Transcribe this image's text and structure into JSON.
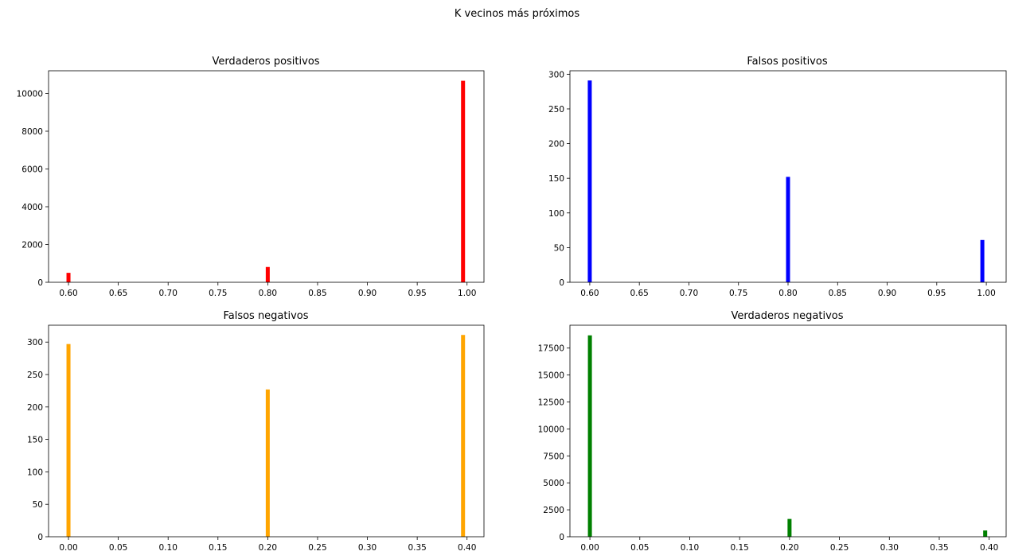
{
  "figure": {
    "title": "K vecinos más próximos"
  },
  "chart_data": [
    {
      "type": "bar",
      "title": "Verdaderos positivos",
      "color": "#ff0000",
      "x": [
        0.6,
        0.8,
        0.996
      ],
      "values": [
        500,
        810,
        10670
      ],
      "xlim": [
        0.58,
        1.017
      ],
      "ylim": [
        0,
        11200
      ],
      "xticks": [
        0.6,
        0.65,
        0.7,
        0.75,
        0.8,
        0.85,
        0.9,
        0.95,
        1.0
      ],
      "xtick_labels": [
        "0.60",
        "0.65",
        "0.70",
        "0.75",
        "0.80",
        "0.85",
        "0.90",
        "0.95",
        "1.00"
      ],
      "yticks": [
        0,
        2000,
        4000,
        6000,
        8000,
        10000
      ],
      "ytick_labels": [
        "0",
        "2000",
        "4000",
        "6000",
        "8000",
        "10000"
      ],
      "bar_width": 0.004
    },
    {
      "type": "bar",
      "title": "Falsos positivos",
      "color": "#0000ff",
      "x": [
        0.6,
        0.8,
        0.996
      ],
      "values": [
        291,
        152,
        61
      ],
      "xlim": [
        0.58,
        1.02
      ],
      "ylim": [
        0,
        305
      ],
      "xticks": [
        0.6,
        0.65,
        0.7,
        0.75,
        0.8,
        0.85,
        0.9,
        0.95,
        1.0
      ],
      "xtick_labels": [
        "0.60",
        "0.65",
        "0.70",
        "0.75",
        "0.80",
        "0.85",
        "0.90",
        "0.95",
        "1.00"
      ],
      "yticks": [
        0,
        50,
        100,
        150,
        200,
        250,
        300
      ],
      "ytick_labels": [
        "0",
        "50",
        "100",
        "150",
        "200",
        "250",
        "300"
      ],
      "bar_width": 0.004
    },
    {
      "type": "bar",
      "title": "Falsos negativos",
      "color": "#ffa500",
      "x": [
        0.0,
        0.2,
        0.396
      ],
      "values": [
        297,
        227,
        311
      ],
      "xlim": [
        -0.02,
        0.417
      ],
      "ylim": [
        0,
        326
      ],
      "xticks": [
        0.0,
        0.05,
        0.1,
        0.15,
        0.2,
        0.25,
        0.3,
        0.35,
        0.4
      ],
      "xtick_labels": [
        "0.00",
        "0.05",
        "0.10",
        "0.15",
        "0.20",
        "0.25",
        "0.30",
        "0.35",
        "0.40"
      ],
      "yticks": [
        0,
        50,
        100,
        150,
        200,
        250,
        300
      ],
      "ytick_labels": [
        "0",
        "50",
        "100",
        "150",
        "200",
        "250",
        "300"
      ],
      "bar_width": 0.004
    },
    {
      "type": "bar",
      "title": "Verdaderos negativos",
      "color": "#008000",
      "x": [
        0.0,
        0.2,
        0.396
      ],
      "values": [
        18680,
        1650,
        580
      ],
      "xlim": [
        -0.02,
        0.417
      ],
      "ylim": [
        0,
        19620
      ],
      "xticks": [
        0.0,
        0.05,
        0.1,
        0.15,
        0.2,
        0.25,
        0.3,
        0.35,
        0.4
      ],
      "xtick_labels": [
        "0.00",
        "0.05",
        "0.10",
        "0.15",
        "0.20",
        "0.25",
        "0.30",
        "0.35",
        "0.40"
      ],
      "yticks": [
        0,
        2500,
        5000,
        7500,
        10000,
        12500,
        15000,
        17500
      ],
      "ytick_labels": [
        "0",
        "2500",
        "5000",
        "7500",
        "10000",
        "12500",
        "15000",
        "17500"
      ],
      "bar_width": 0.004
    }
  ]
}
